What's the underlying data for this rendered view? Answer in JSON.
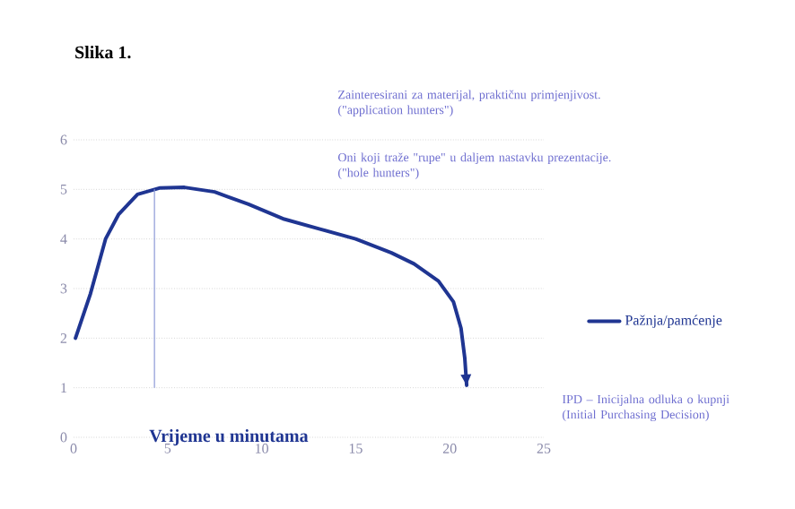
{
  "chart_data": {
    "type": "line",
    "title": "Slika 1.",
    "xlabel": "Vrijeme u minutama",
    "xlim": [
      0,
      25
    ],
    "ylim": [
      0,
      6
    ],
    "xticks": [
      0,
      5,
      10,
      15,
      20,
      25
    ],
    "yticks": [
      0,
      1,
      2,
      3,
      4,
      5,
      6
    ],
    "grid": "y",
    "legend": "right",
    "marker": "none",
    "line_style": "solid",
    "series": [
      {
        "name": "Pažnja/pamćenje",
        "color": "#1f3592",
        "x": [
          0.1,
          0.9,
          1.7,
          2.4,
          3.4,
          4.6,
          5.9,
          7.5,
          9.3,
          11.2,
          13.1,
          15,
          16.9,
          18.1,
          19.4,
          20.2,
          20.6,
          20.8,
          20.9
        ],
        "values": [
          2.0,
          2.9,
          4.0,
          4.5,
          4.9,
          5.03,
          5.04,
          4.95,
          4.7,
          4.4,
          4.2,
          4.0,
          3.72,
          3.5,
          3.15,
          2.73,
          2.2,
          1.6,
          1.05
        ]
      },
      {
        "color": "#8c9ad6",
        "x": [
          4.3,
          4.3
        ],
        "values": [
          1,
          5
        ]
      }
    ],
    "annotations": [
      "Zainteresirani za materijal, praktičnu primjenjivost. (\"application hunters\")",
      "Oni koji traže \"rupe\" u daljem nastavku prezentacije. (\"hole hunters\")",
      "IPD – Inicijalna odluka o kupnji (Initial Purchasing Decision)"
    ]
  }
}
